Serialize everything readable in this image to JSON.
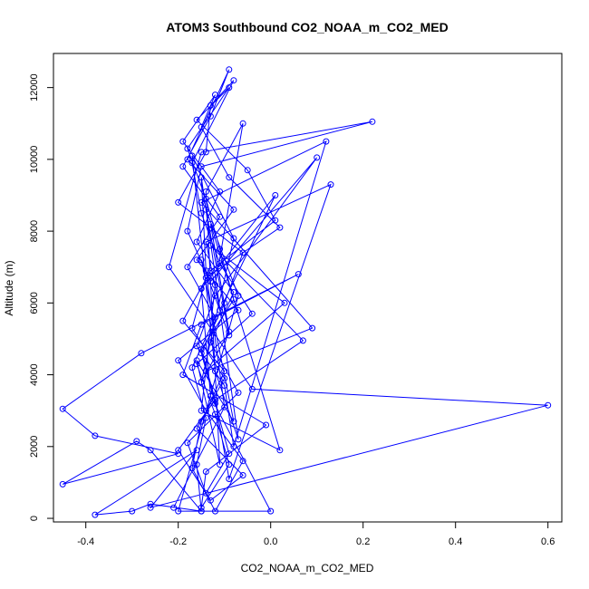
{
  "chart_data": {
    "type": "line",
    "title": "ATOM3 Southbound CO2_NOAA_m_CO2_MED",
    "xlabel": "CO2_NOAA_m_CO2_MED",
    "ylabel": "Altitude (m)",
    "xlim": [
      -0.47,
      0.63
    ],
    "ylim": [
      -100,
      12950
    ],
    "xticks": [
      -0.4,
      -0.2,
      0.0,
      0.2,
      0.4,
      0.6
    ],
    "xtick_labels": [
      "-0.4",
      "-0.2",
      "0.0",
      "0.2",
      "0.4",
      "0.6"
    ],
    "yticks": [
      0,
      2000,
      4000,
      6000,
      8000,
      10000,
      12000
    ],
    "ytick_labels": [
      "0",
      "2000",
      "4000",
      "6000",
      "8000",
      "10000",
      "12000"
    ],
    "grid": false,
    "legend": "none",
    "line_color": "#0000ff",
    "marker": "open-circle",
    "series": [
      {
        "x": [
          -0.15,
          -0.16,
          -0.14,
          -0.17,
          -0.12,
          -0.18,
          -0.11,
          -0.19,
          -0.13,
          -0.09,
          -0.18,
          -0.08,
          -0.16,
          -0.07,
          -0.2,
          -0.14,
          -0.06,
          -0.12,
          -0.17,
          -0.15,
          -0.1,
          -0.19,
          -0.13,
          0.01,
          -0.05,
          -0.16,
          -0.09,
          -0.18,
          -0.14,
          -0.11,
          -0.08,
          -0.15,
          -0.12,
          -0.2,
          -0.13,
          -0.06,
          -0.16,
          -0.1,
          -0.17,
          -0.14,
          0.02,
          -0.09,
          -0.15,
          -0.12,
          -0.19,
          -0.11,
          -0.16,
          -0.08,
          -0.13,
          -0.07,
          -0.18,
          -0.14,
          -0.09,
          -0.12,
          -0.15,
          -0.1,
          -0.06,
          -0.2,
          -0.14,
          -0.13,
          -0.08,
          -0.17,
          -0.15,
          -0.11,
          -0.04,
          -0.16,
          -0.12,
          -0.09,
          -0.15,
          -0.14,
          -0.01,
          -0.19,
          -0.15,
          0.06,
          -0.28,
          -0.45,
          -0.38,
          -0.2,
          -0.45,
          -0.29,
          -0.26,
          -0.15,
          -0.26,
          -0.3,
          -0.38,
          -0.16,
          -0.26,
          0.6,
          -0.04,
          -0.22,
          -0.15,
          0.22,
          -0.15,
          -0.18,
          -0.13,
          0.1,
          -0.12,
          -0.16,
          -0.1,
          -0.08,
          0.12,
          -0.15,
          0.09,
          -0.14,
          0.03,
          -0.13,
          0.07,
          -0.12,
          -0.09,
          0.13,
          -0.14,
          -0.11,
          0.01,
          -0.15,
          -0.13,
          0.0,
          -0.2,
          -0.07,
          -0.14,
          -0.09,
          -0.15,
          -0.08,
          -0.16,
          -0.11,
          -0.14,
          -0.06,
          -0.12,
          -0.15,
          0.02,
          -0.13,
          -0.09,
          -0.15,
          -0.08,
          -0.17,
          -0.12,
          -0.07,
          -0.15,
          -0.14,
          -0.1,
          -0.21
        ],
        "y": [
          200,
          1500,
          2800,
          4200,
          5600,
          7000,
          8400,
          9800,
          11200,
          12500,
          10000,
          8600,
          7200,
          5800,
          4400,
          3000,
          1600,
          200,
          1400,
          2700,
          4100,
          5500,
          6900,
          8300,
          9700,
          11100,
          12000,
          10300,
          8900,
          7500,
          6100,
          4700,
          3300,
          1900,
          500,
          1200,
          2500,
          3900,
          5300,
          6700,
          8100,
          9500,
          10900,
          11800,
          10500,
          9100,
          7700,
          6300,
          4900,
          3500,
          2100,
          700,
          1800,
          3200,
          4600,
          6000,
          7400,
          8800,
          10200,
          11500,
          12200,
          9900,
          8500,
          7100,
          5700,
          4300,
          2900,
          1500,
          300,
          1300,
          2600,
          4000,
          5400,
          6800,
          4600,
          3050,
          2300,
          1800,
          950,
          2150,
          1900,
          200,
          400,
          200,
          100,
          1900,
          300,
          3150,
          3600,
          7000,
          10200,
          11050,
          9800,
          8000,
          6600,
          10050,
          6200,
          4800,
          3700,
          2000,
          10500,
          8800,
          5300,
          4100,
          6000,
          7600,
          4950,
          3300,
          1100,
          9300,
          7700,
          5800,
          9000,
          6400,
          3400,
          200,
          200,
          6200,
          8600,
          5100,
          7200,
          2700,
          4400,
          1500,
          9100,
          11000,
          6500,
          3000,
          1900,
          8200,
          5200,
          3800,
          7800,
          10100,
          4100,
          2200,
          9500,
          6900,
          3100,
          300
        ]
      }
    ]
  }
}
